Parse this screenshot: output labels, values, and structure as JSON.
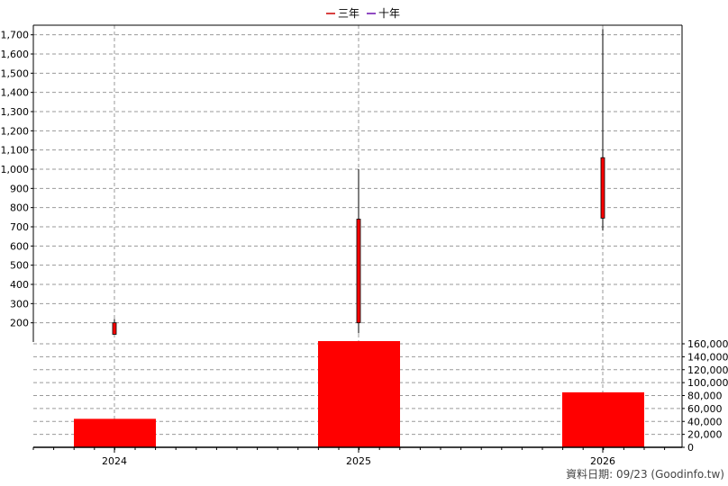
{
  "chart_data": {
    "type": "candlestick",
    "categories": [
      "2024",
      "2025",
      "2026"
    ],
    "legend": {
      "placement": "top-center",
      "items": [
        {
          "name": "三年",
          "color": "#cc0000"
        },
        {
          "name": "十年",
          "color": "#6a0dad"
        }
      ]
    },
    "price": {
      "ylim": [
        100,
        1750
      ],
      "yticks": [
        200,
        300,
        400,
        500,
        600,
        700,
        800,
        900,
        1000,
        1100,
        1200,
        1300,
        1400,
        1500,
        1600,
        1700
      ],
      "candles": [
        {
          "x": "2024",
          "low": 140,
          "open": 140,
          "close": 200,
          "high": 220
        },
        {
          "x": "2025",
          "low": 145,
          "open": 200,
          "close": 740,
          "high": 1000
        },
        {
          "x": "2026",
          "low": 680,
          "open": 745,
          "close": 1060,
          "high": 1730
        }
      ],
      "candle_color": "#ff0000"
    },
    "volume": {
      "ylim": [
        0,
        160000
      ],
      "yticks": [
        0,
        20000,
        40000,
        60000,
        80000,
        100000,
        120000,
        140000,
        160000
      ],
      "values": [
        44000,
        166000,
        85000
      ],
      "bar_color": "#ff0000"
    },
    "grid": true
  },
  "footer": "資料日期: 09/23  (Goodinfo.tw)"
}
